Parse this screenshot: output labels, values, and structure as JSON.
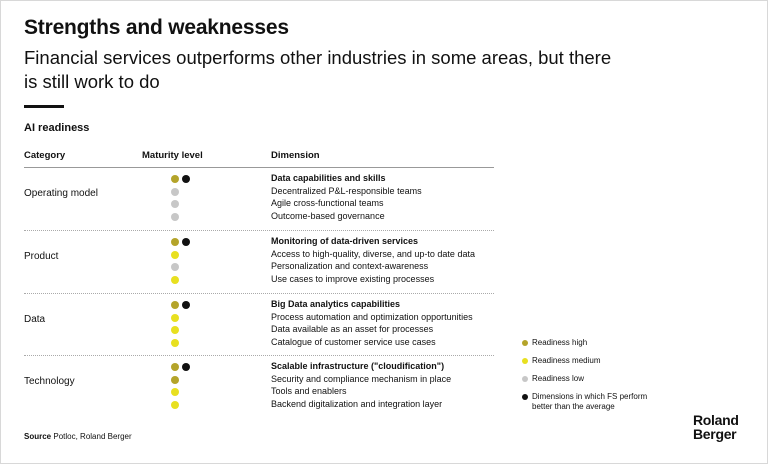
{
  "title": "Strengths and weaknesses",
  "subtitle": "Financial services outperforms other industries in some areas, but there is still work to do",
  "section_label": "AI readiness",
  "columns": {
    "category": "Category",
    "maturity": "Maturity level",
    "dimension": "Dimension"
  },
  "colors": {
    "high": "#b4a42a",
    "medium": "#e8e020",
    "low": "#c7c7c7",
    "better_than_average": "#111111"
  },
  "groups": [
    {
      "category": "Operating model",
      "header": "Data capabilities and skills",
      "header_levels": [
        "high",
        "better"
      ],
      "items": [
        {
          "text": "Decentralized P&L-responsible teams",
          "level": "low"
        },
        {
          "text": "Agile cross-functional teams",
          "level": "low"
        },
        {
          "text": "Outcome-based governance",
          "level": "low"
        }
      ]
    },
    {
      "category": "Product",
      "header": "Monitoring of data-driven services",
      "header_levels": [
        "high",
        "better"
      ],
      "items": [
        {
          "text": "Access to high-quality, diverse, and up-to date data",
          "level": "medium"
        },
        {
          "text": "Personalization and context-awareness",
          "level": "low"
        },
        {
          "text": "Use cases to improve existing processes",
          "level": "medium"
        }
      ]
    },
    {
      "category": "Data",
      "header": "Big Data analytics capabilities",
      "header_levels": [
        "high",
        "better"
      ],
      "items": [
        {
          "text": "Process automation  and optimization opportunities",
          "level": "medium"
        },
        {
          "text": "Data available as an asset for processes",
          "level": "medium"
        },
        {
          "text": "Catalogue of customer service use cases",
          "level": "medium"
        }
      ]
    },
    {
      "category": "Technology",
      "header": "Scalable infrastructure (\"cloudification\")",
      "header_levels": [
        "high",
        "better"
      ],
      "items": [
        {
          "text": "Security and compliance mechanism in place",
          "level": "high"
        },
        {
          "text": "Tools and enablers",
          "level": "medium"
        },
        {
          "text": "Backend digitalization and integration layer",
          "level": "medium"
        }
      ]
    }
  ],
  "legend": [
    {
      "label": "Readiness high",
      "level": "high"
    },
    {
      "label": "Readiness medium",
      "level": "medium"
    },
    {
      "label": "Readiness low",
      "level": "low"
    },
    {
      "label": "Dimensions in which FS perform better than the average",
      "level": "better"
    }
  ],
  "source": {
    "label": "Source",
    "text": "Potloc, Roland Berger"
  },
  "logo": {
    "line1": "Roland",
    "line2": "Berger"
  }
}
